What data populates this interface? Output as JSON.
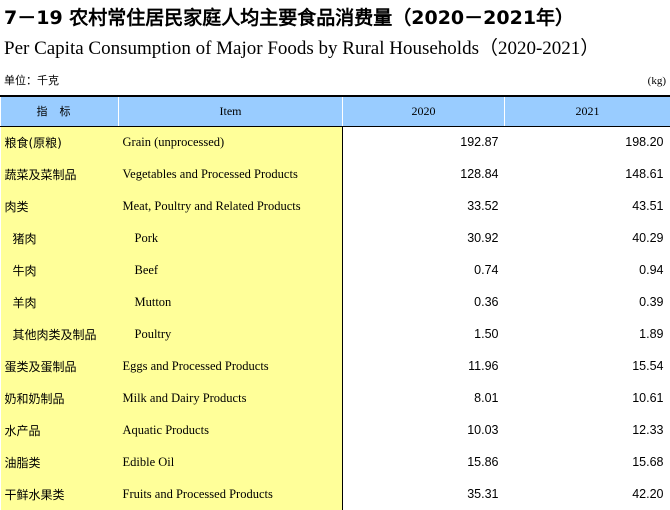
{
  "title_cn": "7－19  农村常住居民家庭人均主要食品消费量（2020－2021年）",
  "title_en": "Per Capita Consumption of Major Foods by Rural Households（2020-2021）",
  "unit_cn": "单位：千克",
  "unit_en": "(kg)",
  "headers": {
    "indicator_cn": "指标",
    "item_en": "Item",
    "year1": "2020",
    "year2": "2021"
  },
  "rows": [
    {
      "cn": "粮食(原粮)",
      "en": "Grain (unprocessed)",
      "v2020": "192.87",
      "v2021": "198.20",
      "indent": false
    },
    {
      "cn": "蔬菜及菜制品",
      "en": "Vegetables and Processed Products",
      "v2020": "128.84",
      "v2021": "148.61",
      "indent": false
    },
    {
      "cn": "肉类",
      "en": "Meat, Poultry and Related Products",
      "v2020": "33.52",
      "v2021": "43.51",
      "indent": false
    },
    {
      "cn": "猪肉",
      "en": "Pork",
      "v2020": "30.92",
      "v2021": "40.29",
      "indent": true
    },
    {
      "cn": "牛肉",
      "en": "Beef",
      "v2020": "0.74",
      "v2021": "0.94",
      "indent": true
    },
    {
      "cn": "羊肉",
      "en": "Mutton",
      "v2020": "0.36",
      "v2021": "0.39",
      "indent": true
    },
    {
      "cn": "其他肉类及制品",
      "en": "Poultry",
      "v2020": "1.50",
      "v2021": "1.89",
      "indent": true
    },
    {
      "cn": "蛋类及蛋制品",
      "en": "Eggs and Processed Products",
      "v2020": "11.96",
      "v2021": "15.54",
      "indent": false
    },
    {
      "cn": "奶和奶制品",
      "en": "Milk and Dairy Products",
      "v2020": "8.01",
      "v2021": "10.61",
      "indent": false
    },
    {
      "cn": "水产品",
      "en": "Aquatic Products",
      "v2020": "10.03",
      "v2021": "12.33",
      "indent": false
    },
    {
      "cn": "油脂类",
      "en": "Edible Oil",
      "v2020": "15.86",
      "v2021": "15.68",
      "indent": false
    },
    {
      "cn": "干鲜水果类",
      "en": "Fruits and Processed Products",
      "v2020": "35.31",
      "v2021": "42.20",
      "indent": false
    }
  ]
}
